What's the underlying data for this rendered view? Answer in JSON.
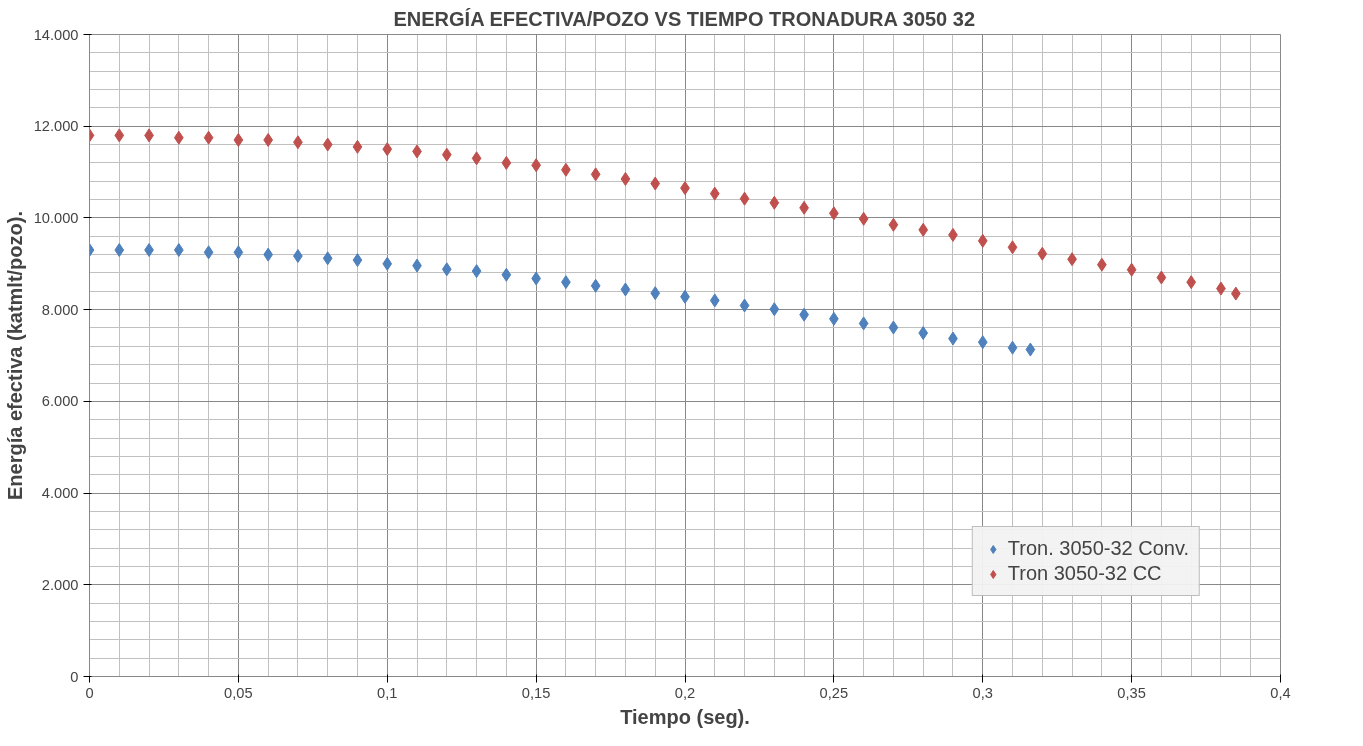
{
  "chart_data": {
    "type": "scatter",
    "title": "ENERGÍA EFECTIVA/POZO VS TIEMPO TRONADURA 3050 32",
    "xlabel": "Tiempo (seg).",
    "ylabel": "Energía efectiva (katmlt/pozo).",
    "xlim": [
      0,
      0.4
    ],
    "xticks": [
      {
        "value": 0,
        "label": "0"
      },
      {
        "value": 0.05,
        "label": "0,05"
      },
      {
        "value": 0.1,
        "label": "0,1"
      },
      {
        "value": 0.15,
        "label": "0,15"
      },
      {
        "value": 0.2,
        "label": "0,2"
      },
      {
        "value": 0.25,
        "label": "0,25"
      },
      {
        "value": 0.3,
        "label": "0,3"
      },
      {
        "value": 0.35,
        "label": "0,35"
      },
      {
        "value": 0.4,
        "label": "0,4"
      }
    ],
    "ylim": [
      0,
      14000
    ],
    "yticks": [
      {
        "value": 0,
        "label": "0"
      },
      {
        "value": 2000,
        "label": "2.000"
      },
      {
        "value": 4000,
        "label": "4.000"
      },
      {
        "value": 6000,
        "label": "6.000"
      },
      {
        "value": 8000,
        "label": "8.000"
      },
      {
        "value": 10000,
        "label": "10.000"
      },
      {
        "value": 12000,
        "label": "12.000"
      },
      {
        "value": 14000,
        "label": "14.000"
      }
    ],
    "grid": true,
    "legend": "bottom right",
    "marker": "diamond",
    "series": [
      {
        "name": "Tron. 3050-32 Conv.",
        "color": "#4f81bd",
        "x": [
          0,
          0.01,
          0.02,
          0.03,
          0.04,
          0.05,
          0.06,
          0.07,
          0.08,
          0.09,
          0.1,
          0.11,
          0.12,
          0.13,
          0.14,
          0.15,
          0.16,
          0.17,
          0.18,
          0.19,
          0.2,
          0.21,
          0.22,
          0.23,
          0.24,
          0.25,
          0.26,
          0.27,
          0.28,
          0.29,
          0.3,
          0.31,
          0.316
        ],
        "values": [
          9300,
          9300,
          9300,
          9300,
          9250,
          9250,
          9200,
          9170,
          9120,
          9080,
          9000,
          8960,
          8880,
          8840,
          8760,
          8680,
          8600,
          8520,
          8440,
          8360,
          8280,
          8200,
          8090,
          8010,
          7890,
          7800,
          7700,
          7610,
          7490,
          7370,
          7290,
          7170,
          7130
        ]
      },
      {
        "name": "Tron 3050-32 CC",
        "color": "#c0504d",
        "x": [
          0,
          0.01,
          0.02,
          0.03,
          0.04,
          0.05,
          0.06,
          0.07,
          0.08,
          0.09,
          0.1,
          0.11,
          0.12,
          0.13,
          0.14,
          0.15,
          0.16,
          0.17,
          0.18,
          0.19,
          0.2,
          0.21,
          0.22,
          0.23,
          0.24,
          0.25,
          0.26,
          0.27,
          0.28,
          0.29,
          0.3,
          0.31,
          0.32,
          0.33,
          0.34,
          0.35,
          0.36,
          0.37,
          0.38,
          0.385
        ],
        "values": [
          11800,
          11800,
          11800,
          11750,
          11750,
          11700,
          11700,
          11650,
          11600,
          11550,
          11500,
          11450,
          11380,
          11300,
          11200,
          11150,
          11050,
          10950,
          10850,
          10750,
          10650,
          10530,
          10420,
          10330,
          10220,
          10100,
          9980,
          9850,
          9740,
          9630,
          9500,
          9360,
          9220,
          9100,
          8980,
          8870,
          8700,
          8600,
          8460,
          8350
        ]
      }
    ]
  }
}
